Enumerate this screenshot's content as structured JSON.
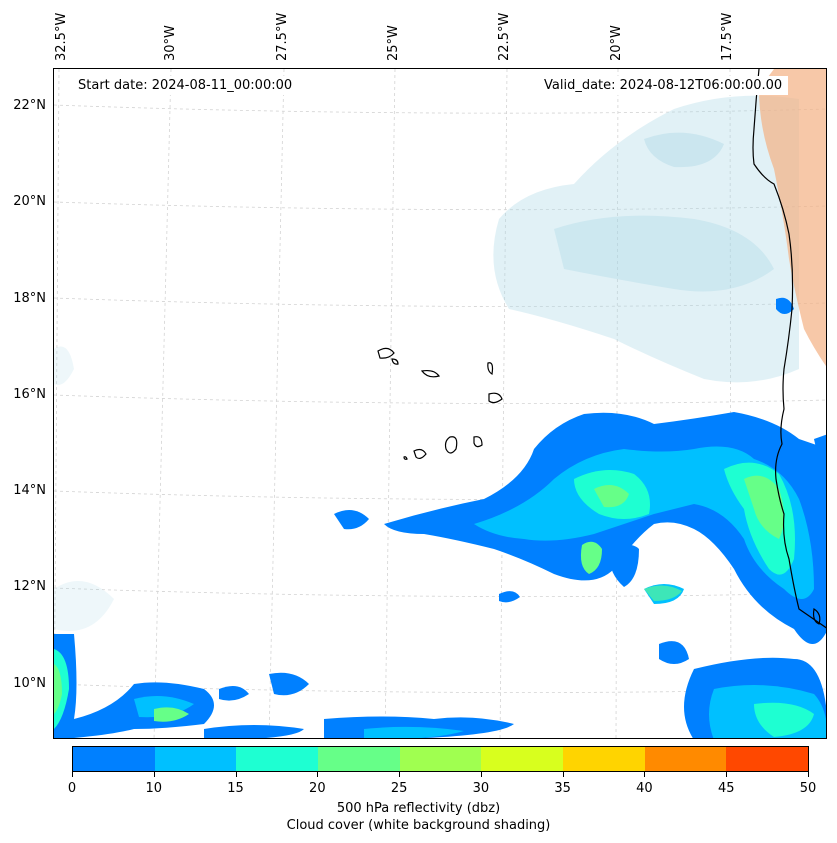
{
  "map": {
    "start_date": "Start date: 2024-08-11_00:00:00",
    "valid_date": "Valid_date: 2024-08-12T06:00:00.00",
    "lon_labels": [
      "32.5°W",
      "30°W",
      "27.5°W",
      "25°W",
      "22.5°W",
      "20°W",
      "17.5°W"
    ],
    "lat_labels": [
      "22°N",
      "20°N",
      "18°N",
      "16°N",
      "14°N",
      "12°N",
      "10°N"
    ],
    "colors": {
      "cloud": "#a9d6e5",
      "land": "#f4b183",
      "coast": "#000000",
      "grid": "#cccccc"
    }
  },
  "colorbar": {
    "ticks": [
      "0",
      "10",
      "15",
      "20",
      "25",
      "30",
      "35",
      "40",
      "45",
      "50"
    ],
    "colors": [
      "#0080ff",
      "#00c0ff",
      "#1effd2",
      "#66ff88",
      "#a0ff50",
      "#d8ff1e",
      "#ffd400",
      "#ff8a00",
      "#ff4800"
    ],
    "label": "500 hPa reflectivity (dbz)",
    "sublabel": "Cloud cover (white background shading)"
  }
}
